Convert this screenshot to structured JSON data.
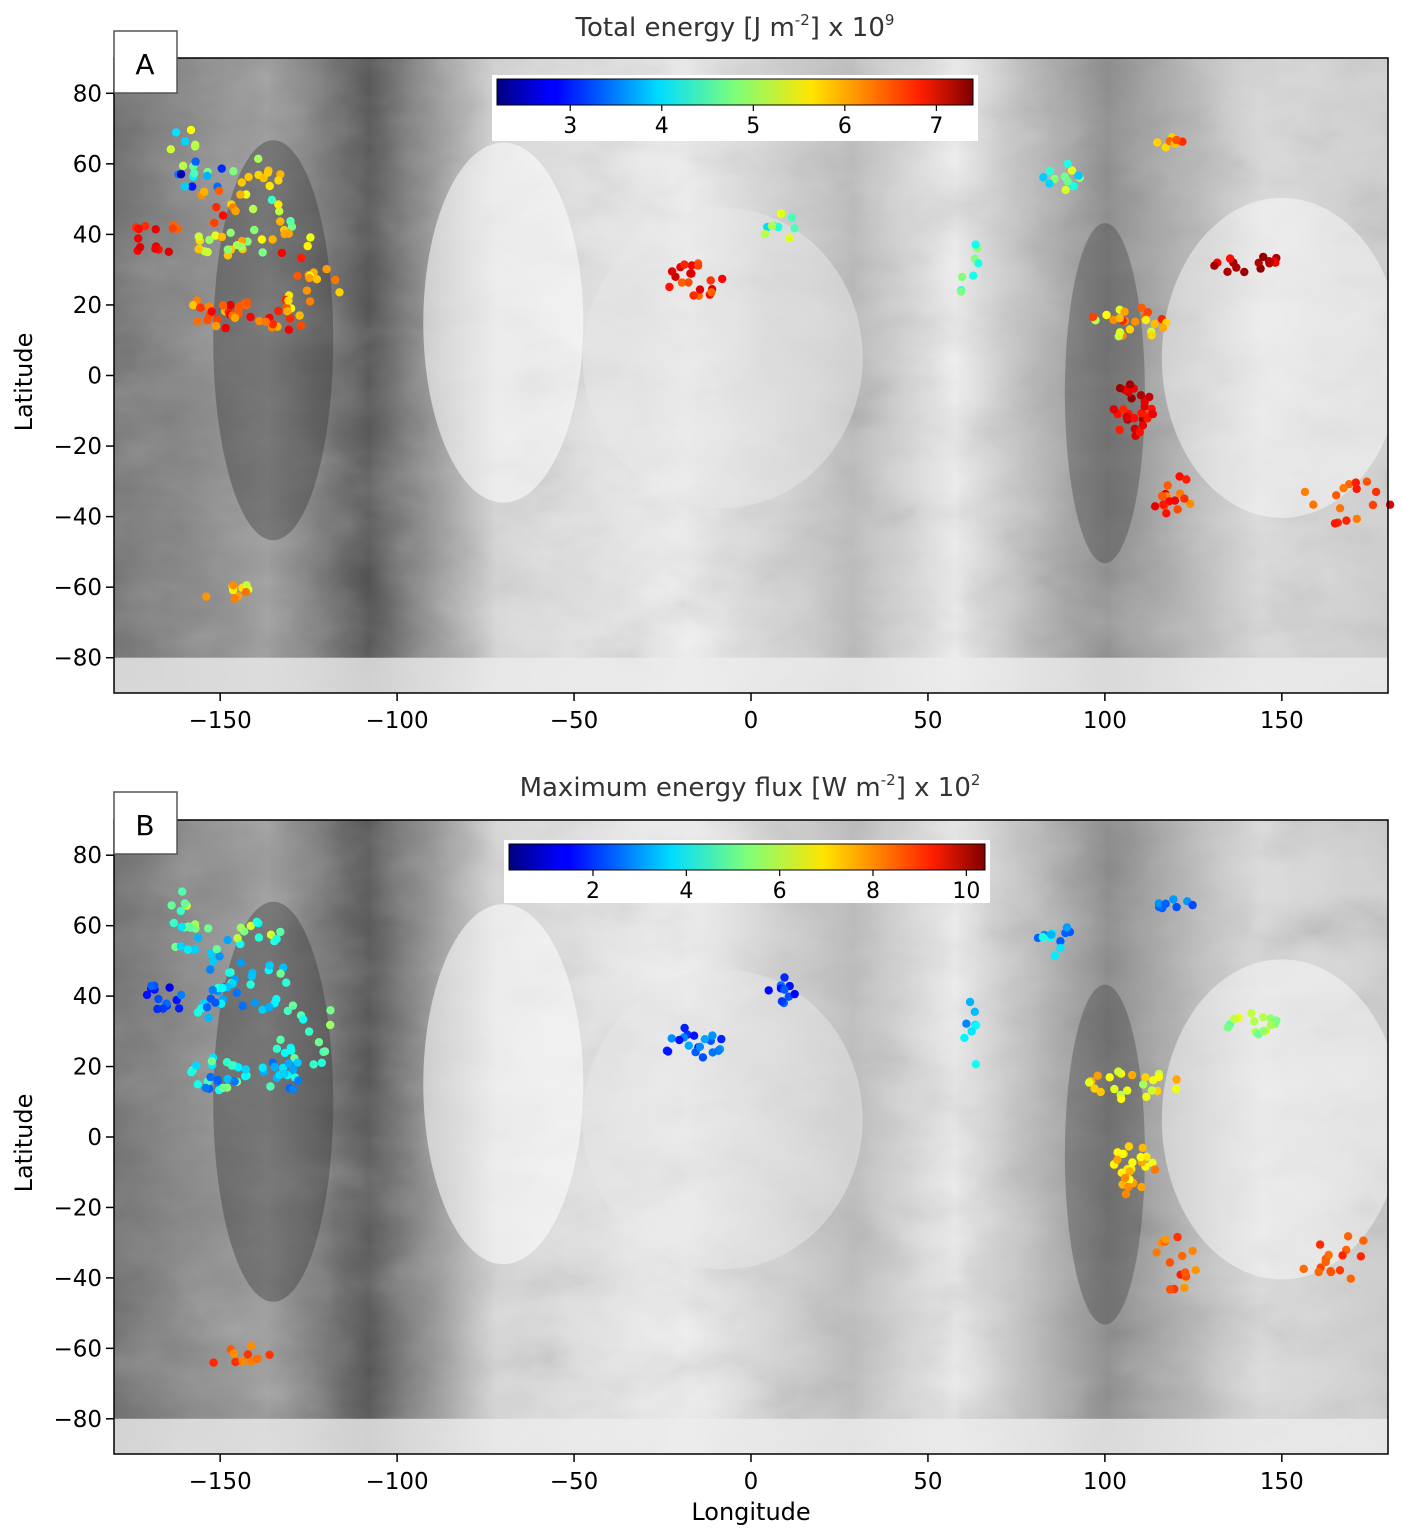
{
  "figure": {
    "x_axis_label": "Longitude",
    "y_axis_label": "Latitude"
  },
  "chart_data": [
    {
      "type": "scatter",
      "panel_label": "A",
      "title_parts": {
        "prefix": "Total energy [J m",
        "exp1": "-2",
        "middle": "] x 10",
        "exp2": "9"
      },
      "xlabel": "",
      "ylabel": "Latitude",
      "xlim": [
        -180,
        180
      ],
      "ylim": [
        -90,
        90
      ],
      "x_ticks": [
        -150,
        -100,
        -50,
        0,
        50,
        100,
        150
      ],
      "x_tick_labels": [
        "−150",
        "−100",
        "−50",
        "0",
        "50",
        "100",
        "150"
      ],
      "y_ticks": [
        80,
        60,
        40,
        20,
        0,
        -20,
        -40,
        -60,
        -80
      ],
      "y_tick_labels": [
        "80",
        "60",
        "40",
        "20",
        "0",
        "−20",
        "−40",
        "−60",
        "−80"
      ],
      "colorbar": {
        "colormap": "jet",
        "vmin": 2.2,
        "vmax": 7.4,
        "ticks": [
          3,
          4,
          5,
          6,
          7
        ],
        "tick_labels": [
          "3",
          "4",
          "5",
          "6",
          "7"
        ]
      },
      "background": "grayscale shaded relief map",
      "clusters": [
        {
          "lon": -160,
          "lat": 63,
          "spread_lon": 3,
          "spread_lat": 5,
          "n": 10,
          "value_mean": 4.5,
          "value_spread": 1.2
        },
        {
          "lon": -155,
          "lat": 56,
          "spread_lon": 6,
          "spread_lat": 3,
          "n": 10,
          "value_mean": 3.5,
          "value_spread": 1.3
        },
        {
          "lon": -140,
          "lat": 56,
          "spread_lon": 5,
          "spread_lat": 4,
          "n": 12,
          "value_mean": 5.6,
          "value_spread": 0.6
        },
        {
          "lon": -150,
          "lat": 48,
          "spread_lon": 4,
          "spread_lat": 4,
          "n": 10,
          "value_mean": 6.2,
          "value_spread": 0.6
        },
        {
          "lon": -168,
          "lat": 39,
          "spread_lon": 5,
          "spread_lat": 3,
          "n": 14,
          "value_mean": 6.6,
          "value_spread": 0.4
        },
        {
          "lon": -150,
          "lat": 38,
          "spread_lon": 5,
          "spread_lat": 3,
          "n": 18,
          "value_mean": 5.4,
          "value_spread": 0.6
        },
        {
          "lon": -135,
          "lat": 42,
          "spread_lon": 5,
          "spread_lat": 5,
          "n": 14,
          "value_mean": 5.2,
          "value_spread": 0.8
        },
        {
          "lon": -125,
          "lat": 28,
          "spread_lon": 6,
          "spread_lat": 7,
          "n": 18,
          "value_mean": 6.0,
          "value_spread": 0.8
        },
        {
          "lon": -150,
          "lat": 18,
          "spread_lon": 6,
          "spread_lat": 3,
          "n": 26,
          "value_mean": 6.3,
          "value_spread": 0.6
        },
        {
          "lon": -132,
          "lat": 17,
          "spread_lon": 5,
          "spread_lat": 3,
          "n": 16,
          "value_mean": 6.2,
          "value_spread": 0.6
        },
        {
          "lon": -145,
          "lat": -62,
          "spread_lon": 6,
          "spread_lat": 2,
          "n": 12,
          "value_mean": 5.6,
          "value_spread": 0.6
        },
        {
          "lon": -16,
          "lat": 27,
          "spread_lon": 6,
          "spread_lat": 3,
          "n": 20,
          "value_mean": 6.6,
          "value_spread": 0.4
        },
        {
          "lon": 8,
          "lat": 42,
          "spread_lon": 3,
          "spread_lat": 3,
          "n": 10,
          "value_mean": 4.6,
          "value_spread": 0.9
        },
        {
          "lon": 62,
          "lat": 29,
          "spread_lon": 2,
          "spread_lat": 6,
          "n": 8,
          "value_mean": 4.4,
          "value_spread": 0.8
        },
        {
          "lon": 87,
          "lat": 56,
          "spread_lon": 4,
          "spread_lat": 3,
          "n": 12,
          "value_mean": 4.6,
          "value_spread": 1.0
        },
        {
          "lon": 120,
          "lat": 66,
          "spread_lon": 4,
          "spread_lat": 1,
          "n": 8,
          "value_mean": 6.0,
          "value_spread": 0.7
        },
        {
          "lon": 140,
          "lat": 32,
          "spread_lon": 6,
          "spread_lat": 2,
          "n": 16,
          "value_mean": 7.0,
          "value_spread": 0.3
        },
        {
          "lon": 108,
          "lat": 15,
          "spread_lon": 8,
          "spread_lat": 3,
          "n": 24,
          "value_mean": 5.8,
          "value_spread": 0.8
        },
        {
          "lon": 108,
          "lat": -10,
          "spread_lon": 4,
          "spread_lat": 5,
          "n": 28,
          "value_mean": 6.9,
          "value_spread": 0.4
        },
        {
          "lon": 120,
          "lat": -36,
          "spread_lon": 4,
          "spread_lat": 5,
          "n": 16,
          "value_mean": 6.4,
          "value_spread": 0.5
        },
        {
          "lon": 168,
          "lat": -36,
          "spread_lon": 8,
          "spread_lat": 5,
          "n": 16,
          "value_mean": 6.5,
          "value_spread": 0.4
        }
      ]
    },
    {
      "type": "scatter",
      "panel_label": "B",
      "title_parts": {
        "prefix": "Maximum energy flux [W m",
        "exp1": "-2",
        "middle": "] x 10",
        "exp2": "2"
      },
      "xlabel": "Longitude",
      "ylabel": "Latitude",
      "xlim": [
        -180,
        180
      ],
      "ylim": [
        -90,
        90
      ],
      "x_ticks": [
        -150,
        -100,
        -50,
        0,
        50,
        100,
        150
      ],
      "x_tick_labels": [
        "−150",
        "−100",
        "−50",
        "0",
        "50",
        "100",
        "150"
      ],
      "y_ticks": [
        80,
        60,
        40,
        20,
        0,
        -20,
        -40,
        -60,
        -80
      ],
      "y_tick_labels": [
        "80",
        "60",
        "40",
        "20",
        "0",
        "−20",
        "−40",
        "−60",
        "−80"
      ],
      "colorbar": {
        "colormap": "jet",
        "vmin": 0.2,
        "vmax": 10.4,
        "ticks": [
          2,
          4,
          6,
          8,
          10
        ],
        "tick_labels": [
          "2",
          "4",
          "6",
          "8",
          "10"
        ]
      },
      "background": "grayscale shaded relief map",
      "clusters": [
        {
          "lon": -160,
          "lat": 63,
          "spread_lon": 3,
          "spread_lat": 5,
          "n": 10,
          "value_mean": 5.2,
          "value_spread": 1.2
        },
        {
          "lon": -155,
          "lat": 56,
          "spread_lon": 6,
          "spread_lat": 3,
          "n": 10,
          "value_mean": 4.2,
          "value_spread": 1.4
        },
        {
          "lon": -140,
          "lat": 56,
          "spread_lon": 5,
          "spread_lat": 4,
          "n": 12,
          "value_mean": 5.0,
          "value_spread": 1.2
        },
        {
          "lon": -150,
          "lat": 48,
          "spread_lon": 4,
          "spread_lat": 4,
          "n": 10,
          "value_mean": 4.0,
          "value_spread": 1.2
        },
        {
          "lon": -168,
          "lat": 39,
          "spread_lon": 5,
          "spread_lat": 3,
          "n": 14,
          "value_mean": 2.0,
          "value_spread": 0.8
        },
        {
          "lon": -150,
          "lat": 38,
          "spread_lon": 5,
          "spread_lat": 3,
          "n": 18,
          "value_mean": 3.4,
          "value_spread": 1.2
        },
        {
          "lon": -135,
          "lat": 42,
          "spread_lon": 5,
          "spread_lat": 5,
          "n": 14,
          "value_mean": 4.0,
          "value_spread": 1.2
        },
        {
          "lon": -125,
          "lat": 28,
          "spread_lon": 6,
          "spread_lat": 7,
          "n": 18,
          "value_mean": 4.4,
          "value_spread": 1.2
        },
        {
          "lon": -150,
          "lat": 18,
          "spread_lon": 6,
          "spread_lat": 3,
          "n": 26,
          "value_mean": 3.8,
          "value_spread": 1.6
        },
        {
          "lon": -132,
          "lat": 17,
          "spread_lon": 5,
          "spread_lat": 3,
          "n": 16,
          "value_mean": 3.6,
          "value_spread": 1.2
        },
        {
          "lon": -145,
          "lat": -62,
          "spread_lon": 6,
          "spread_lat": 2,
          "n": 12,
          "value_mean": 8.2,
          "value_spread": 0.6
        },
        {
          "lon": -16,
          "lat": 27,
          "spread_lon": 6,
          "spread_lat": 3,
          "n": 20,
          "value_mean": 2.4,
          "value_spread": 0.8
        },
        {
          "lon": 8,
          "lat": 42,
          "spread_lon": 3,
          "spread_lat": 3,
          "n": 10,
          "value_mean": 2.0,
          "value_spread": 0.6
        },
        {
          "lon": 62,
          "lat": 29,
          "spread_lon": 2,
          "spread_lat": 6,
          "n": 8,
          "value_mean": 3.6,
          "value_spread": 0.8
        },
        {
          "lon": 87,
          "lat": 56,
          "spread_lon": 4,
          "spread_lat": 3,
          "n": 12,
          "value_mean": 3.2,
          "value_spread": 1.2
        },
        {
          "lon": 120,
          "lat": 66,
          "spread_lon": 4,
          "spread_lat": 1,
          "n": 8,
          "value_mean": 2.4,
          "value_spread": 0.8
        },
        {
          "lon": 140,
          "lat": 32,
          "spread_lon": 6,
          "spread_lat": 2,
          "n": 16,
          "value_mean": 5.6,
          "value_spread": 0.8
        },
        {
          "lon": 108,
          "lat": 15,
          "spread_lon": 8,
          "spread_lat": 3,
          "n": 24,
          "value_mean": 6.6,
          "value_spread": 1.0
        },
        {
          "lon": 108,
          "lat": -10,
          "spread_lon": 4,
          "spread_lat": 5,
          "n": 28,
          "value_mean": 7.2,
          "value_spread": 0.8
        },
        {
          "lon": 120,
          "lat": -36,
          "spread_lon": 4,
          "spread_lat": 5,
          "n": 16,
          "value_mean": 8.2,
          "value_spread": 0.8
        },
        {
          "lon": 168,
          "lat": -36,
          "spread_lon": 8,
          "spread_lat": 5,
          "n": 16,
          "value_mean": 8.4,
          "value_spread": 0.4
        }
      ]
    }
  ]
}
